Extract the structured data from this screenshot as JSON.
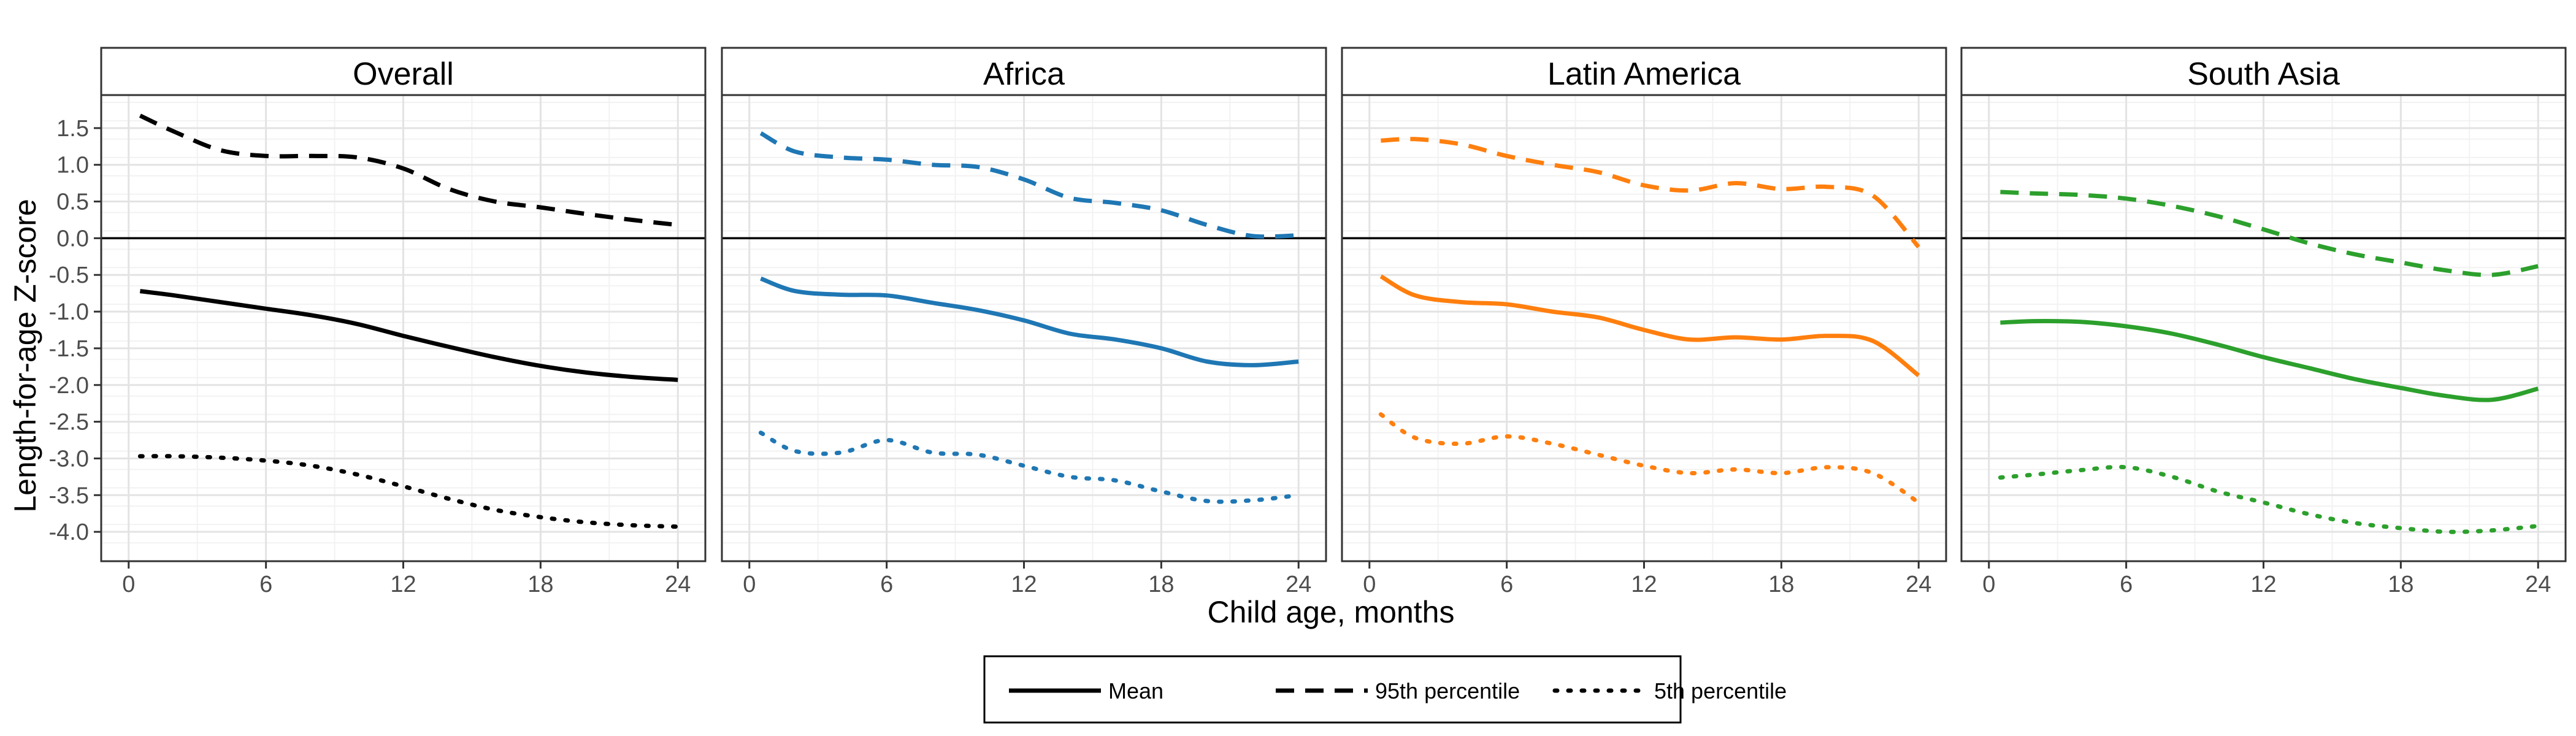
{
  "chart_data": {
    "type": "line",
    "ylabel": "Length-for-age Z-score",
    "xlabel": "Child age, months",
    "xlim": [
      -1.2,
      25.2
    ],
    "ylim": [
      -4.4,
      1.95
    ],
    "x_ticks": [
      0,
      6,
      12,
      18,
      24
    ],
    "x_tick_labels": [
      "0",
      "6",
      "12",
      "18",
      "24"
    ],
    "y_ticks": [
      1.5,
      1.0,
      0.5,
      0.0,
      -0.5,
      -1.0,
      -1.5,
      -2.0,
      -2.5,
      -3.0,
      -3.5,
      -4.0
    ],
    "y_tick_labels": [
      "1.5",
      "1.0",
      "0.5",
      "0.0",
      "-0.5",
      "-1.0",
      "-1.5",
      "-2.0",
      "-2.5",
      "-3.0",
      "-3.5",
      "-4.0"
    ],
    "reference_line": 0,
    "grid": true,
    "legend": {
      "placement": "bottom",
      "entries": [
        {
          "label": "Mean",
          "linetype": "solid"
        },
        {
          "label": "95th percentile",
          "linetype": "dashed"
        },
        {
          "label": "5th percentile",
          "linetype": "dotted"
        }
      ]
    },
    "panels": [
      {
        "title": "Overall",
        "color": "#000000",
        "x": [
          0.5,
          2,
          4,
          6,
          8,
          10,
          12,
          14,
          16,
          18,
          20,
          22,
          24
        ],
        "mean": [
          -0.72,
          -0.78,
          -0.87,
          -0.96,
          -1.05,
          -1.17,
          -1.33,
          -1.48,
          -1.62,
          -1.74,
          -1.83,
          -1.89,
          -1.93
        ],
        "p95": [
          1.67,
          1.45,
          1.2,
          1.12,
          1.12,
          1.1,
          0.95,
          0.67,
          0.5,
          0.42,
          0.33,
          0.25,
          0.18
        ],
        "p5": [
          -2.97,
          -2.97,
          -2.99,
          -3.03,
          -3.1,
          -3.22,
          -3.38,
          -3.55,
          -3.7,
          -3.8,
          -3.87,
          -3.91,
          -3.93
        ]
      },
      {
        "title": "Africa",
        "color": "#1f77b4",
        "x": [
          0.5,
          2,
          4,
          6,
          8,
          10,
          12,
          14,
          16,
          18,
          20,
          22,
          24
        ],
        "mean": [
          -0.55,
          -0.72,
          -0.77,
          -0.78,
          -0.88,
          -0.98,
          -1.12,
          -1.3,
          -1.38,
          -1.5,
          -1.68,
          -1.73,
          -1.68
        ],
        "p95": [
          1.43,
          1.18,
          1.1,
          1.07,
          1.0,
          0.97,
          0.8,
          0.55,
          0.48,
          0.38,
          0.18,
          0.03,
          0.04
        ],
        "p5": [
          -2.65,
          -2.9,
          -2.92,
          -2.75,
          -2.92,
          -2.95,
          -3.1,
          -3.25,
          -3.3,
          -3.45,
          -3.58,
          -3.57,
          -3.5
        ]
      },
      {
        "title": "Latin America",
        "color": "#ff7f0e",
        "x": [
          0.5,
          2,
          4,
          6,
          8,
          10,
          12,
          14,
          16,
          18,
          20,
          22,
          24
        ],
        "mean": [
          -0.52,
          -0.78,
          -0.87,
          -0.9,
          -1.0,
          -1.08,
          -1.25,
          -1.38,
          -1.35,
          -1.38,
          -1.33,
          -1.4,
          -1.87
        ],
        "p95": [
          1.33,
          1.35,
          1.28,
          1.12,
          1.0,
          0.9,
          0.72,
          0.65,
          0.75,
          0.67,
          0.7,
          0.58,
          -0.12
        ],
        "p5": [
          -2.4,
          -2.72,
          -2.8,
          -2.7,
          -2.8,
          -2.95,
          -3.1,
          -3.2,
          -3.15,
          -3.2,
          -3.12,
          -3.2,
          -3.6
        ]
      },
      {
        "title": "South Asia",
        "color": "#2ca02c",
        "x": [
          0.5,
          2,
          4,
          6,
          8,
          10,
          12,
          14,
          16,
          18,
          20,
          22,
          24
        ],
        "mean": [
          -1.15,
          -1.13,
          -1.14,
          -1.2,
          -1.3,
          -1.45,
          -1.62,
          -1.77,
          -1.92,
          -2.04,
          -2.15,
          -2.2,
          -2.05
        ],
        "p95": [
          0.63,
          0.61,
          0.59,
          0.54,
          0.44,
          0.3,
          0.12,
          -0.07,
          -0.22,
          -0.33,
          -0.44,
          -0.5,
          -0.38
        ],
        "p5": [
          -3.26,
          -3.22,
          -3.16,
          -3.12,
          -3.25,
          -3.45,
          -3.6,
          -3.76,
          -3.88,
          -3.95,
          -4.0,
          -3.98,
          -3.92
        ]
      }
    ]
  }
}
